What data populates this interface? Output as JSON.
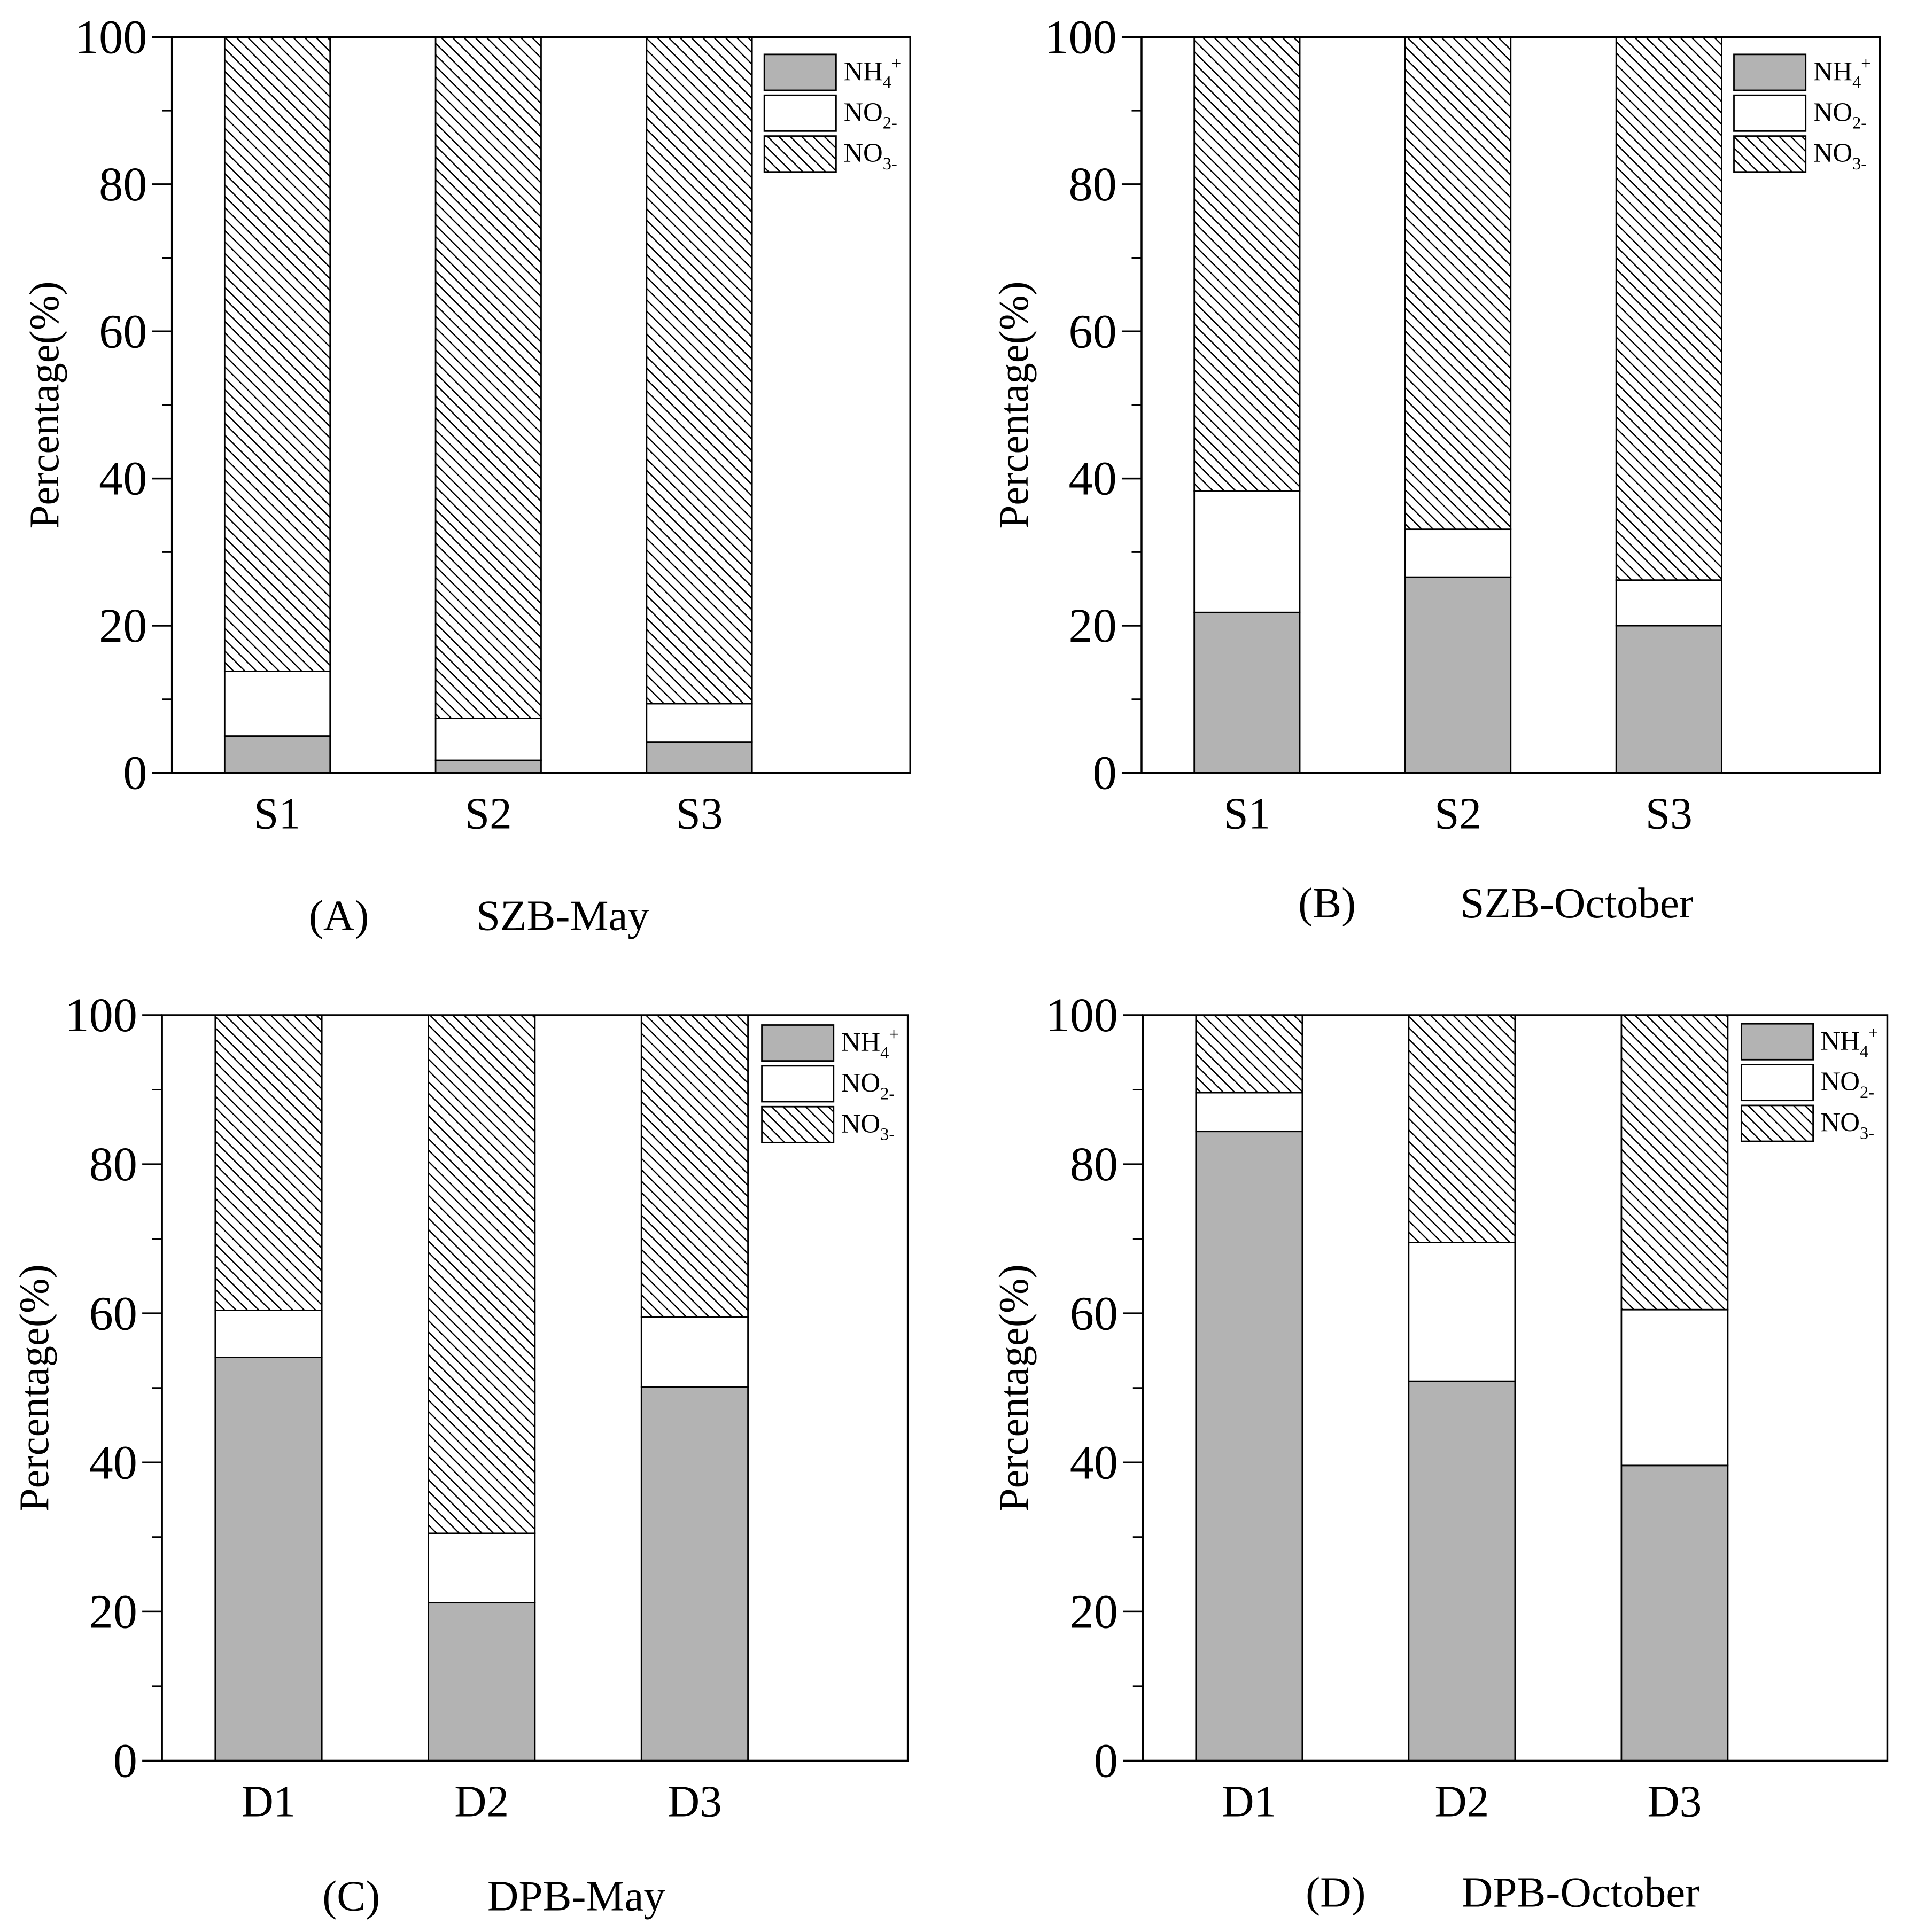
{
  "chart_data": [
    {
      "type": "bar",
      "stacked": true,
      "panel_label": "(A)",
      "title": "SZB-May",
      "ylabel": "Percentage(%)",
      "ylim": [
        0,
        100
      ],
      "y_ticks": [
        0,
        20,
        40,
        60,
        80,
        100
      ],
      "y_minor_ticks": [
        10,
        30,
        50,
        70,
        90
      ],
      "grid": false,
      "legend_position": "top-right",
      "categories": [
        "S1",
        "S2",
        "S3"
      ],
      "series": [
        {
          "label_main": "NH",
          "label_sub": "4",
          "label_sup": "+",
          "fill": "#b3b3b3",
          "hatch": false,
          "values": [
            5.0,
            1.7,
            4.2
          ]
        },
        {
          "label_main": "NO",
          "label_sub": "2-",
          "fill": "#ffffff",
          "hatch": false,
          "values": [
            8.8,
            5.7,
            5.2
          ]
        },
        {
          "label_main": "NO",
          "label_sub": "3-",
          "fill": "#ffffff",
          "hatch": true,
          "values": [
            86.2,
            92.6,
            90.6
          ]
        }
      ]
    },
    {
      "type": "bar",
      "stacked": true,
      "panel_label": "(B)",
      "title": "SZB-October",
      "ylabel": "Percentage(%)",
      "ylim": [
        0,
        100
      ],
      "y_ticks": [
        0,
        20,
        40,
        60,
        80,
        100
      ],
      "y_minor_ticks": [
        10,
        30,
        50,
        70,
        90
      ],
      "grid": false,
      "legend_position": "top-right",
      "categories": [
        "S1",
        "S2",
        "S3"
      ],
      "series": [
        {
          "label_main": "NH",
          "label_sub": "4",
          "label_sup": "+",
          "fill": "#b3b3b3",
          "hatch": false,
          "values": [
            21.8,
            26.6,
            20.0
          ]
        },
        {
          "label_main": "NO",
          "label_sub": "2-",
          "fill": "#ffffff",
          "hatch": false,
          "values": [
            16.5,
            6.5,
            6.2
          ]
        },
        {
          "label_main": "NO",
          "label_sub": "3-",
          "fill": "#ffffff",
          "hatch": true,
          "values": [
            61.7,
            66.9,
            73.8
          ]
        }
      ]
    },
    {
      "type": "bar",
      "stacked": true,
      "panel_label": "(C)",
      "title": "DPB-May",
      "ylabel": "Percentage(%)",
      "ylim": [
        0,
        100
      ],
      "y_ticks": [
        0,
        20,
        40,
        60,
        80,
        100
      ],
      "y_minor_ticks": [
        10,
        30,
        50,
        70,
        90
      ],
      "grid": false,
      "legend_position": "top-right",
      "categories": [
        "D1",
        "D2",
        "D3"
      ],
      "series": [
        {
          "label_main": "NH",
          "label_sub": "4",
          "label_sup": "+",
          "fill": "#b3b3b3",
          "hatch": false,
          "values": [
            54.1,
            21.2,
            50.1
          ]
        },
        {
          "label_main": "NO",
          "label_sub": "2-",
          "fill": "#ffffff",
          "hatch": false,
          "values": [
            6.3,
            9.3,
            9.4
          ]
        },
        {
          "label_main": "NO",
          "label_sub": "3-",
          "fill": "#ffffff",
          "hatch": true,
          "values": [
            39.6,
            69.5,
            40.5
          ]
        }
      ]
    },
    {
      "type": "bar",
      "stacked": true,
      "panel_label": "(D)",
      "title": "DPB-October",
      "ylabel": "Percentage(%)",
      "ylim": [
        0,
        100
      ],
      "y_ticks": [
        0,
        20,
        40,
        60,
        80,
        100
      ],
      "y_minor_ticks": [
        10,
        30,
        50,
        70,
        90
      ],
      "grid": false,
      "legend_position": "top-right",
      "categories": [
        "D1",
        "D2",
        "D3"
      ],
      "series": [
        {
          "label_main": "NH",
          "label_sub": "4",
          "label_sup": "+",
          "fill": "#b3b3b3",
          "hatch": false,
          "values": [
            84.4,
            50.9,
            39.6
          ]
        },
        {
          "label_main": "NO",
          "label_sub": "2-",
          "fill": "#ffffff",
          "hatch": false,
          "values": [
            5.2,
            18.6,
            20.9
          ]
        },
        {
          "label_main": "NO",
          "label_sub": "3-",
          "fill": "#ffffff",
          "hatch": true,
          "values": [
            10.4,
            30.5,
            39.5
          ]
        }
      ]
    }
  ]
}
